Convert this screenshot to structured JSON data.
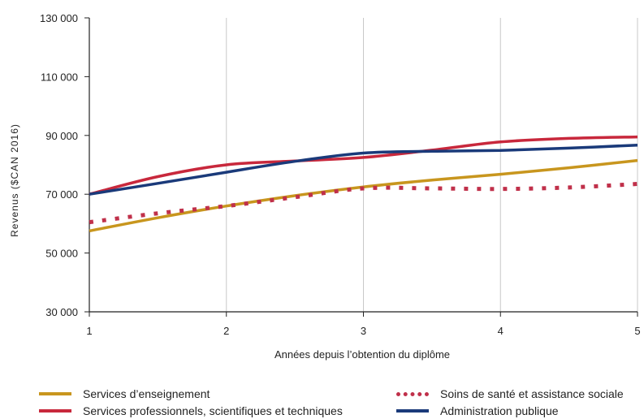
{
  "chart_data": {
    "type": "line",
    "title": "",
    "xlabel": "Années depuis l’obtention du diplôme",
    "ylabel": "Revenus ($CAN 2016)",
    "x": [
      1,
      2,
      3,
      4,
      5
    ],
    "x_tick_labels": [
      "1",
      "2",
      "3",
      "4",
      "5"
    ],
    "xlim": [
      1,
      5
    ],
    "ylim": [
      30000,
      130000
    ],
    "y_ticks": [
      30000,
      50000,
      70000,
      90000,
      110000,
      130000
    ],
    "y_tick_labels": [
      "30 000",
      "50 000",
      "70 000",
      "90 000",
      "110 000",
      "130 000"
    ],
    "grid": "vertical",
    "legend_position": "bottom",
    "series": [
      {
        "name": "Services d’enseignement",
        "color": "#c8961e",
        "style": "solid",
        "points": [
          [
            1,
            57500
          ],
          [
            1.5,
            62000
          ],
          [
            2,
            66000
          ],
          [
            2.5,
            69500
          ],
          [
            3,
            72500
          ],
          [
            3.5,
            74800
          ],
          [
            4,
            76800
          ],
          [
            4.5,
            79000
          ],
          [
            5,
            81500
          ]
        ]
      },
      {
        "name": "Soins de santé et assistance sociale",
        "color": "#c0304a",
        "style": "dotted",
        "points": [
          [
            1,
            60500
          ],
          [
            1.5,
            63500
          ],
          [
            2,
            66000
          ],
          [
            2.5,
            69000
          ],
          [
            3,
            72000
          ],
          [
            3.5,
            72000
          ],
          [
            4,
            71800
          ],
          [
            4.5,
            72300
          ],
          [
            5,
            73500
          ]
        ]
      },
      {
        "name": "Services professionnels, scientifiques et techniques",
        "color": "#c8283c",
        "style": "solid",
        "points": [
          [
            1,
            70000
          ],
          [
            1.5,
            76000
          ],
          [
            2,
            80000
          ],
          [
            2.5,
            81300
          ],
          [
            3,
            82500
          ],
          [
            3.5,
            85000
          ],
          [
            4,
            87800
          ],
          [
            4.5,
            89000
          ],
          [
            5,
            89500
          ]
        ]
      },
      {
        "name": "Administration publique",
        "color": "#1a3a7a",
        "style": "solid",
        "points": [
          [
            1,
            70000
          ],
          [
            1.5,
            73700
          ],
          [
            2,
            77500
          ],
          [
            2.5,
            81200
          ],
          [
            3,
            84000
          ],
          [
            3.5,
            84600
          ],
          [
            4,
            84900
          ],
          [
            4.5,
            85700
          ],
          [
            5,
            86700
          ]
        ]
      }
    ]
  }
}
